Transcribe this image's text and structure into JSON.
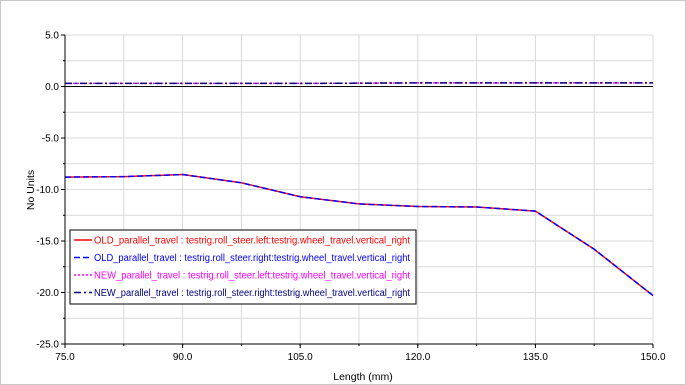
{
  "chart_data": {
    "type": "line",
    "xlabel": "Length (mm)",
    "ylabel": "No Units",
    "xlim": [
      75.0,
      150.0
    ],
    "ylim": [
      -25.0,
      5.0
    ],
    "x_ticks": [
      "75.0",
      "90.0",
      "105.0",
      "120.0",
      "135.0",
      "150.0"
    ],
    "y_ticks": [
      "5.0",
      "0.0",
      "-5.0",
      "-10.0",
      "-15.0",
      "-20.0",
      "-25.0"
    ],
    "grid": true,
    "legend_position": "bottom-left",
    "series": [
      {
        "name": "OLD_parallel_travel : testrig.roll_steer.left:testrig.wheel_travel.vertical_right",
        "color": "#ff0000",
        "dash": "solid",
        "x": [
          75,
          82.5,
          90,
          97.5,
          105,
          112.5,
          120,
          127.5,
          135,
          142.5,
          150
        ],
        "y": [
          -8.8,
          -8.75,
          -8.55,
          -9.35,
          -10.7,
          -11.4,
          -11.65,
          -11.7,
          -12.1,
          -15.8,
          -20.3
        ]
      },
      {
        "name": "OLD_parallel_travel : testrig.roll_steer.right:testrig.wheel_travel.vertical_right",
        "color": "#0000ff",
        "dash": "dashed",
        "x": [
          75,
          82.5,
          90,
          97.5,
          105,
          112.5,
          120,
          127.5,
          135,
          142.5,
          150
        ],
        "y": [
          -8.8,
          -8.75,
          -8.55,
          -9.35,
          -10.7,
          -11.4,
          -11.65,
          -11.7,
          -12.1,
          -15.8,
          -20.3
        ]
      },
      {
        "name": "NEW_parallel_travel : testrig.roll_steer.left:testrig.wheel_travel.vertical_right",
        "color": "#ff00ff",
        "dash": "dotted",
        "x": [
          75,
          90,
          105,
          120,
          135,
          150
        ],
        "y": [
          0.3,
          0.3,
          0.3,
          0.35,
          0.35,
          0.35
        ]
      },
      {
        "name": "NEW_parallel_travel : testrig.roll_steer.right:testrig.wheel_travel.vertical_right",
        "color": "#000080",
        "dash": "dashdot",
        "x": [
          75,
          90,
          105,
          120,
          135,
          150
        ],
        "y": [
          0.3,
          0.3,
          0.3,
          0.35,
          0.35,
          0.35
        ]
      }
    ]
  }
}
